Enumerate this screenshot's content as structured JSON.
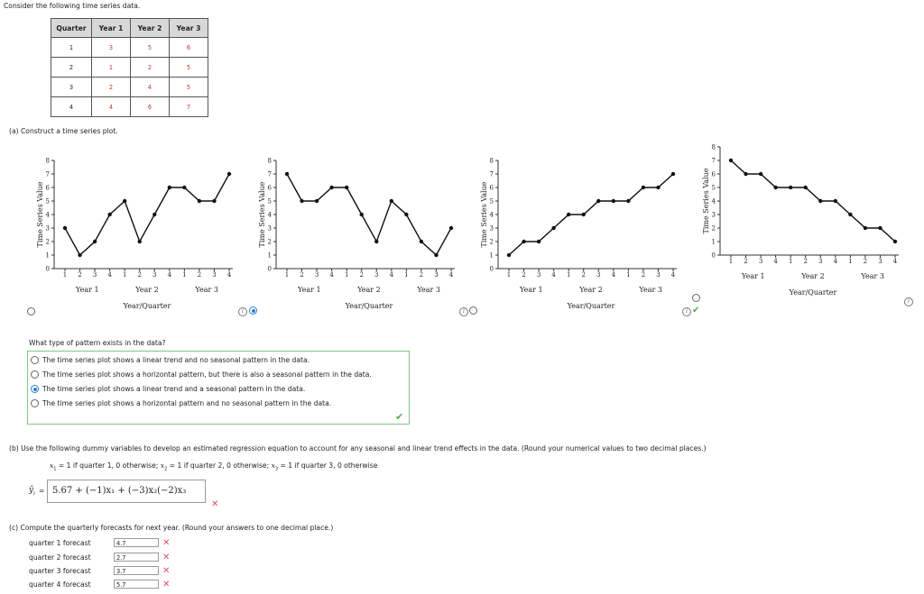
{
  "intro": "Consider the following time series data.",
  "table": {
    "headers": [
      "Quarter",
      "Year 1",
      "Year 2",
      "Year 3"
    ],
    "rows": [
      [
        "1",
        "3",
        "5",
        "6"
      ],
      [
        "2",
        "1",
        "2",
        "5"
      ],
      [
        "3",
        "2",
        "4",
        "5"
      ],
      [
        "4",
        "4",
        "6",
        "7"
      ]
    ]
  },
  "part_a": {
    "label": "(a)  Construct a time series plot.",
    "y_axis_label": "Time Series Value",
    "x_axis_label": "Year/Quarter",
    "year_labels": [
      "Year 1",
      "Year 2",
      "Year 3"
    ],
    "quarter_ticks": [
      "1",
      "2",
      "3",
      "4"
    ],
    "info_glyph": "i"
  },
  "chart_data": [
    {
      "type": "line",
      "option": 1,
      "ylim": [
        0,
        8
      ],
      "yticks": [
        0,
        1,
        2,
        3,
        4,
        5,
        6,
        7,
        8
      ],
      "ylabel": "Time Series Value",
      "xlabel": "Year/Quarter",
      "values": [
        3,
        1,
        2,
        4,
        5,
        2,
        4,
        6,
        6,
        5,
        5,
        7
      ]
    },
    {
      "type": "line",
      "option": 2,
      "ylim": [
        0,
        8
      ],
      "yticks": [
        0,
        1,
        2,
        3,
        4,
        5,
        6,
        7,
        8
      ],
      "ylabel": "Time Series Value",
      "xlabel": "Year/Quarter",
      "values": [
        7,
        5,
        5,
        6,
        6,
        4,
        2,
        5,
        4,
        2,
        1,
        3
      ]
    },
    {
      "type": "line",
      "option": 3,
      "ylim": [
        0,
        8
      ],
      "yticks": [
        0,
        1,
        2,
        3,
        4,
        5,
        6,
        7,
        8
      ],
      "ylabel": "Time Series Value",
      "xlabel": "Year/Quarter",
      "values": [
        1,
        2,
        2,
        3,
        4,
        4,
        5,
        5,
        5,
        6,
        6,
        7
      ]
    },
    {
      "type": "line",
      "option": 4,
      "ylim": [
        0,
        8
      ],
      "yticks": [
        0,
        1,
        2,
        3,
        4,
        5,
        6,
        7,
        8
      ],
      "ylabel": "Time Series Value",
      "xlabel": "Year/Quarter",
      "values": [
        7,
        6,
        6,
        5,
        5,
        5,
        4,
        4,
        3,
        2,
        2,
        1
      ]
    }
  ],
  "plot_choice_selected": 1,
  "pattern_question": {
    "prompt": "What type of pattern exists in the data?",
    "options": [
      "The time series plot shows a linear trend and no seasonal pattern in the data.",
      "The time series plot shows a horizontal pattern, but there is also a seasonal pattern in the data.",
      "The time series plot shows a linear trend and a seasonal pattern in the data.",
      "The time series plot shows a horizontal pattern and no seasonal pattern in the data."
    ],
    "selected": 2,
    "check_mark": "✔"
  },
  "part_b": {
    "label": "(b)  Use the following dummy variables to develop an estimated regression equation to account for any seasonal and linear trend effects in the data. (Round your numerical values to two decimal places.)",
    "dummy_x1": "= 1 if quarter 1, 0 otherwise; ",
    "dummy_x2": "= 1 if quarter 2, 0 otherwise; ",
    "dummy_x3": "= 1 if quarter 3, 0 otherwise",
    "yhat_equals": "=",
    "equation": "5.67 + (−1)x₁ + (−3)x₂(−2)x₃",
    "x_mark": "✕"
  },
  "part_c": {
    "label": "(c)  Compute the quarterly forecasts for next year. (Round your answers to one decimal place.)",
    "forecasts": [
      {
        "label": "quarter 1 forecast",
        "value": "4.7"
      },
      {
        "label": "quarter 2 forecast",
        "value": "2.7"
      },
      {
        "label": "quarter 3 forecast",
        "value": "3.7"
      },
      {
        "label": "quarter 4 forecast",
        "value": "5.7"
      }
    ],
    "x_mark": "✕"
  },
  "colors": {
    "line": "#111111",
    "correct": "#4cae4c",
    "wrong": "#d9534f",
    "radio_selected": "#2a7fd4",
    "input_value": "#c0392b"
  }
}
